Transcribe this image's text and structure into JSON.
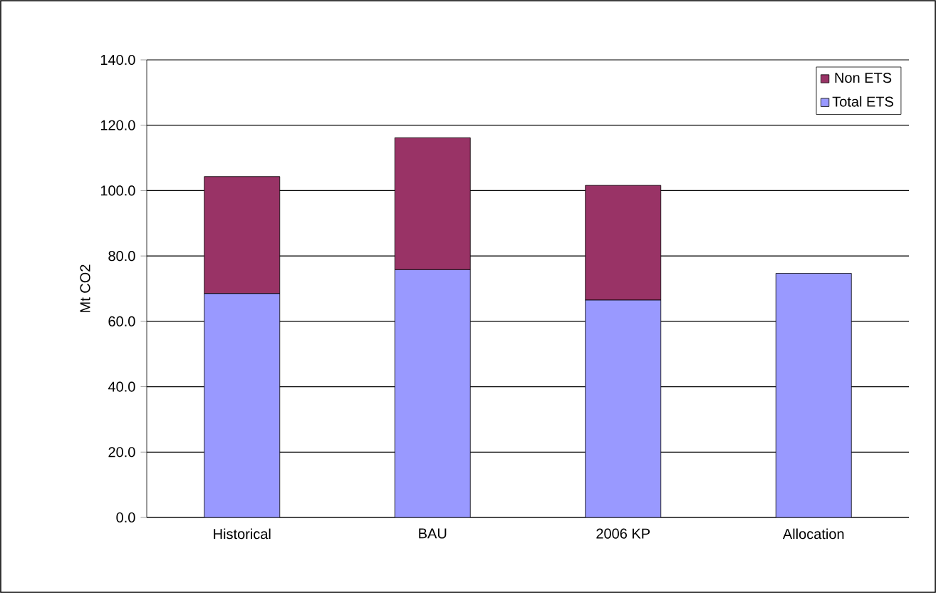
{
  "chart_data": {
    "type": "bar",
    "stacked": true,
    "ylabel": "Mt CO2",
    "categories": [
      "Historical",
      "BAU",
      "2006 KP",
      "Allocation"
    ],
    "series": [
      {
        "name": "Total ETS",
        "color": "#9999ff",
        "values": [
          68.5,
          75.8,
          66.5,
          74.7
        ]
      },
      {
        "name": "Non ETS",
        "color": "#993366",
        "values": [
          35.8,
          40.4,
          35.1,
          null
        ]
      }
    ],
    "ylim": [
      0,
      140
    ],
    "yticks": [
      {
        "value": 0,
        "label": "0.0"
      },
      {
        "value": 20,
        "label": "20.0"
      },
      {
        "value": 40,
        "label": "40.0"
      },
      {
        "value": 60,
        "label": "60.0"
      },
      {
        "value": 80,
        "label": "80.0"
      },
      {
        "value": 100,
        "label": "100.0"
      },
      {
        "value": 120,
        "label": "120.0"
      },
      {
        "value": 140,
        "label": "140.0"
      }
    ],
    "grid": "y",
    "legend": "top right"
  }
}
